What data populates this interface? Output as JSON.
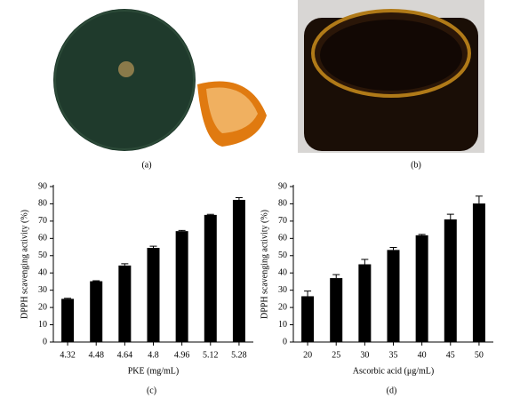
{
  "photo_captions": [
    "(a)",
    "(b)"
  ],
  "chart_data": [
    {
      "type": "bar",
      "caption": "(c)",
      "ylabel": "DPPH scavenging activity (%)",
      "xlabel": "PKE (mg/mL)",
      "categories": [
        "4.32",
        "4.48",
        "4.64",
        "4.8",
        "4.96",
        "5.12",
        "5.28"
      ],
      "values": [
        25,
        35.2,
        44.3,
        54.5,
        64.2,
        73.6,
        82.3
      ],
      "errors": [
        0.3,
        0.3,
        1,
        1,
        0.4,
        0.3,
        1.3
      ],
      "color": "#000000",
      "ylim": [
        0,
        90
      ],
      "yticks": [
        0,
        10,
        20,
        30,
        40,
        50,
        60,
        70,
        80,
        90
      ]
    },
    {
      "type": "bar",
      "caption": "(d)",
      "ylabel": "DPPH scavenging activity (%)",
      "xlabel": "Ascorbic acid (μg/mL)",
      "categories": [
        "20",
        "25",
        "30",
        "35",
        "40",
        "45",
        "50"
      ],
      "values": [
        26.5,
        37,
        45,
        53.3,
        61.8,
        71,
        80.2
      ],
      "errors": [
        3,
        2,
        2.8,
        1.5,
        0.5,
        3,
        4.3
      ],
      "color": "#000000",
      "ylim": [
        0,
        90
      ],
      "yticks": [
        0,
        10,
        20,
        30,
        40,
        50,
        60,
        70,
        80,
        90
      ]
    }
  ]
}
